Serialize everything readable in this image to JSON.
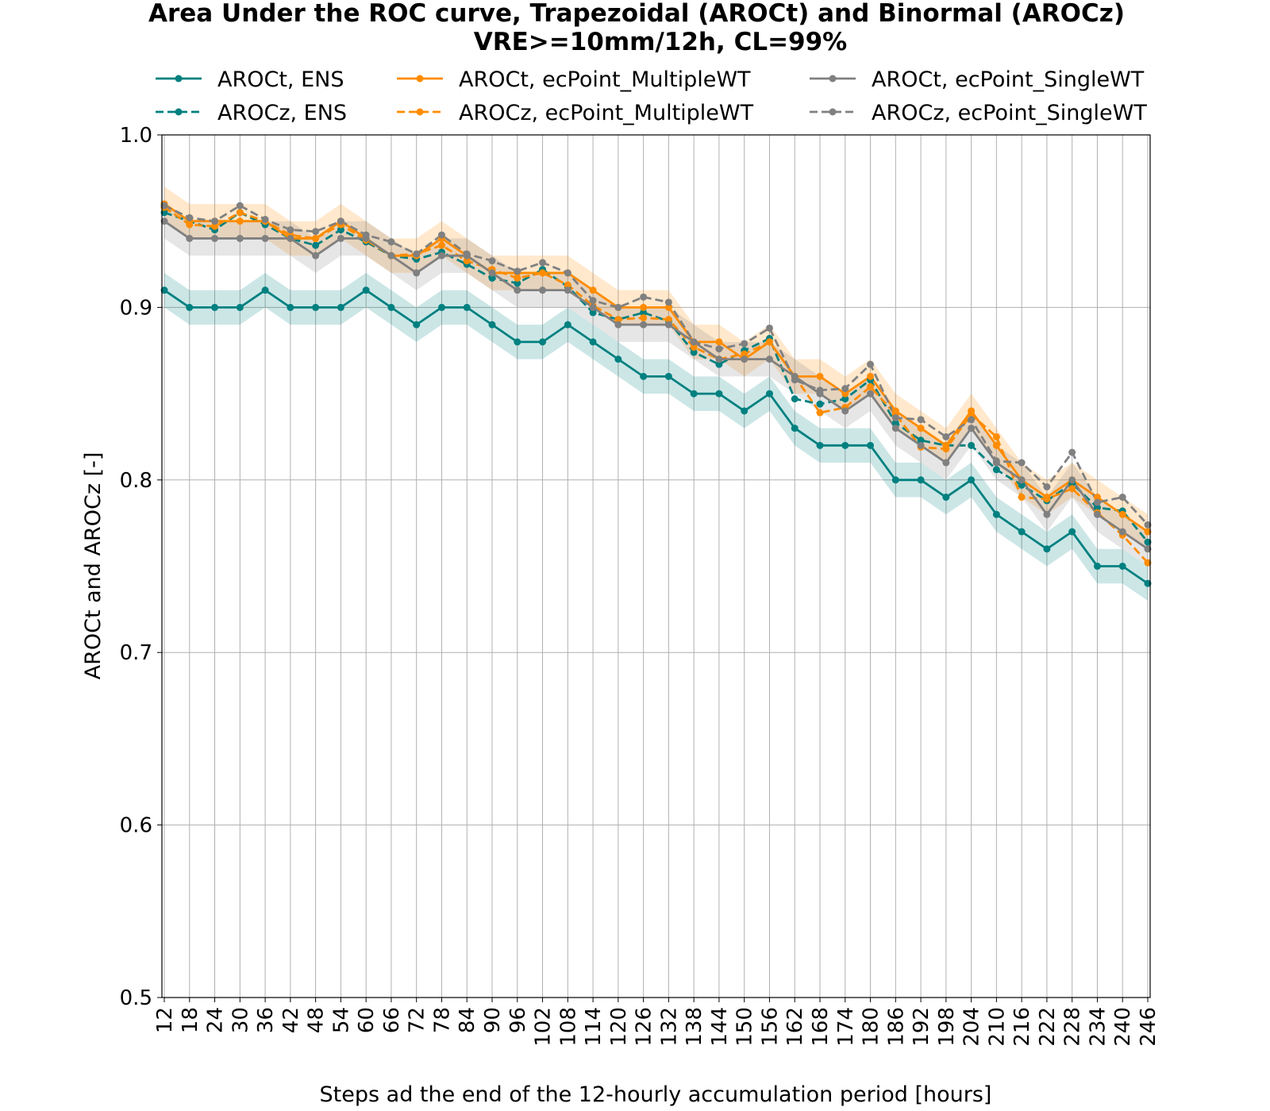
{
  "chart_data": {
    "type": "line",
    "title": "Area Under the ROC curve, Trapezoidal (AROCt) and Binormal (AROCz)",
    "subtitle": "VRE>=10mm/12h, CL=99%",
    "xlabel": "Steps ad the end of the 12-hourly accumulation period [hours]",
    "ylabel": "AROCt and AROCz [-]",
    "ylim": [
      0.5,
      1.0
    ],
    "yticks": [
      "0.5",
      "0.6",
      "0.7",
      "0.8",
      "0.9",
      "1.0"
    ],
    "grid": true,
    "legend_position": "top",
    "x": [
      12,
      18,
      24,
      30,
      36,
      42,
      48,
      54,
      60,
      66,
      72,
      78,
      84,
      90,
      96,
      102,
      108,
      114,
      120,
      126,
      132,
      138,
      144,
      150,
      156,
      162,
      168,
      174,
      180,
      186,
      192,
      198,
      204,
      210,
      216,
      222,
      228,
      234,
      240,
      246
    ],
    "series": [
      {
        "name": "AROCt, ENS",
        "color": "#008080",
        "dashed": false,
        "band_halfwidth": 0.01,
        "values": [
          0.91,
          0.9,
          0.9,
          0.9,
          0.91,
          0.9,
          0.9,
          0.9,
          0.91,
          0.9,
          0.89,
          0.9,
          0.9,
          0.89,
          0.88,
          0.88,
          0.89,
          0.88,
          0.87,
          0.86,
          0.86,
          0.85,
          0.85,
          0.84,
          0.85,
          0.83,
          0.82,
          0.82,
          0.82,
          0.8,
          0.8,
          0.79,
          0.8,
          0.78,
          0.77,
          0.76,
          0.77,
          0.75,
          0.75,
          0.74
        ]
      },
      {
        "name": "AROCz, ENS",
        "color": "#008080",
        "dashed": true,
        "band_halfwidth": 0.0,
        "values": [
          0.955,
          0.95,
          0.945,
          0.955,
          0.948,
          0.94,
          0.936,
          0.945,
          0.938,
          0.93,
          0.928,
          0.932,
          0.925,
          0.917,
          0.914,
          0.922,
          0.912,
          0.897,
          0.893,
          0.897,
          0.892,
          0.874,
          0.867,
          0.875,
          0.882,
          0.847,
          0.844,
          0.847,
          0.858,
          0.833,
          0.823,
          0.82,
          0.82,
          0.806,
          0.797,
          0.788,
          0.798,
          0.784,
          0.782,
          0.764
        ]
      },
      {
        "name": "AROCt, ecPoint_MultipleWT",
        "color": "#ff8c00",
        "dashed": false,
        "band_halfwidth": 0.01,
        "values": [
          0.96,
          0.95,
          0.95,
          0.95,
          0.95,
          0.94,
          0.94,
          0.95,
          0.94,
          0.93,
          0.93,
          0.94,
          0.93,
          0.92,
          0.92,
          0.92,
          0.92,
          0.91,
          0.9,
          0.9,
          0.9,
          0.88,
          0.88,
          0.87,
          0.88,
          0.86,
          0.86,
          0.85,
          0.86,
          0.84,
          0.83,
          0.82,
          0.84,
          0.82,
          0.8,
          0.79,
          0.8,
          0.79,
          0.78,
          0.77
        ]
      },
      {
        "name": "AROCz, ecPoint_MultipleWT",
        "color": "#ff8c00",
        "dashed": true,
        "band_halfwidth": 0.0,
        "values": [
          0.958,
          0.948,
          0.947,
          0.955,
          0.95,
          0.942,
          0.94,
          0.948,
          0.939,
          0.93,
          0.931,
          0.936,
          0.927,
          0.922,
          0.917,
          0.92,
          0.913,
          0.901,
          0.893,
          0.894,
          0.893,
          0.877,
          0.87,
          0.873,
          0.88,
          0.86,
          0.839,
          0.842,
          0.854,
          0.838,
          0.819,
          0.818,
          0.838,
          0.825,
          0.79,
          0.789,
          0.795,
          0.781,
          0.768,
          0.752
        ]
      },
      {
        "name": "AROCt, ecPoint_SingleWT",
        "color": "#808080",
        "dashed": false,
        "band_halfwidth": 0.01,
        "values": [
          0.95,
          0.94,
          0.94,
          0.94,
          0.94,
          0.94,
          0.93,
          0.94,
          0.94,
          0.93,
          0.92,
          0.93,
          0.93,
          0.92,
          0.91,
          0.91,
          0.91,
          0.9,
          0.89,
          0.89,
          0.89,
          0.88,
          0.87,
          0.87,
          0.87,
          0.86,
          0.85,
          0.84,
          0.85,
          0.83,
          0.82,
          0.81,
          0.83,
          0.81,
          0.8,
          0.78,
          0.8,
          0.78,
          0.77,
          0.76
        ]
      },
      {
        "name": "AROCz, ecPoint_SingleWT",
        "color": "#808080",
        "dashed": true,
        "band_halfwidth": 0.0,
        "values": [
          0.959,
          0.952,
          0.95,
          0.959,
          0.951,
          0.945,
          0.944,
          0.95,
          0.942,
          0.938,
          0.931,
          0.942,
          0.931,
          0.927,
          0.921,
          0.926,
          0.92,
          0.904,
          0.9,
          0.906,
          0.903,
          0.88,
          0.876,
          0.879,
          0.888,
          0.858,
          0.852,
          0.853,
          0.867,
          0.836,
          0.835,
          0.825,
          0.835,
          0.811,
          0.81,
          0.796,
          0.816,
          0.787,
          0.79,
          0.774
        ]
      }
    ]
  }
}
